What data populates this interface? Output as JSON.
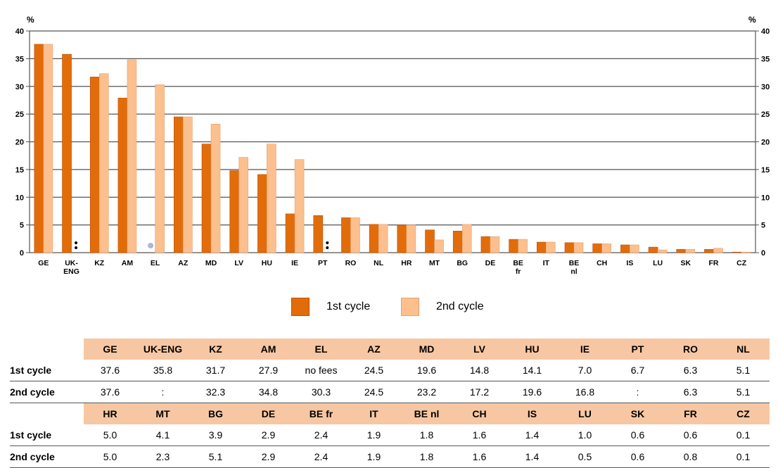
{
  "chart_data": {
    "type": "bar",
    "ylabel": "%",
    "ylim": [
      0,
      40
    ],
    "yticks": [
      0,
      5,
      10,
      15,
      20,
      25,
      30,
      35,
      40
    ],
    "categories": [
      "GE",
      "UK-ENG",
      "KZ",
      "AM",
      "EL",
      "AZ",
      "MD",
      "LV",
      "HU",
      "IE",
      "PT",
      "RO",
      "NL",
      "HR",
      "MT",
      "BG",
      "DE",
      "BE fr",
      "IT",
      "BE nl",
      "CH",
      "IS",
      "LU",
      "SK",
      "FR",
      "CZ"
    ],
    "series": [
      {
        "name": "1st cycle",
        "color": "#e36c0a",
        "values": [
          37.6,
          35.8,
          31.7,
          27.9,
          null,
          24.5,
          19.6,
          14.8,
          14.1,
          7.0,
          6.7,
          6.3,
          5.1,
          5.0,
          4.1,
          3.9,
          2.9,
          2.4,
          1.9,
          1.8,
          1.6,
          1.4,
          1.0,
          0.6,
          0.6,
          0.1
        ]
      },
      {
        "name": "2nd cycle",
        "color": "#fbc08e",
        "values": [
          37.6,
          null,
          32.3,
          34.8,
          30.3,
          24.5,
          23.2,
          17.2,
          19.6,
          16.8,
          null,
          6.3,
          5.1,
          5.0,
          2.3,
          5.1,
          2.9,
          2.4,
          1.9,
          1.8,
          1.6,
          1.4,
          0.5,
          0.6,
          0.8,
          0.1
        ]
      }
    ],
    "markers": [
      {
        "category": "UK-ENG",
        "series": "2nd cycle",
        "symbol": ":"
      },
      {
        "category": "PT",
        "series": "2nd cycle",
        "symbol": ":"
      },
      {
        "category": "EL",
        "series": "1st cycle",
        "symbol": "dot"
      }
    ],
    "grid": true,
    "legend_position": "bottom-center"
  },
  "axis": {
    "left_unit": "%",
    "right_unit": "%"
  },
  "table": {
    "row_labels": [
      "1st cycle",
      "2nd cycle"
    ],
    "blocks": [
      {
        "headers": [
          "GE",
          "UK-ENG",
          "KZ",
          "AM",
          "EL",
          "AZ",
          "MD",
          "LV",
          "HU",
          "IE",
          "PT",
          "RO",
          "NL"
        ],
        "rows": [
          [
            "37.6",
            "35.8",
            "31.7",
            "27.9",
            "no fees",
            "24.5",
            "19.6",
            "14.8",
            "14.1",
            "7.0",
            "6.7",
            "6.3",
            "5.1"
          ],
          [
            "37.6",
            ":",
            "32.3",
            "34.8",
            "30.3",
            "24.5",
            "23.2",
            "17.2",
            "19.6",
            "16.8",
            ":",
            "6.3",
            "5.1"
          ]
        ]
      },
      {
        "headers": [
          "HR",
          "MT",
          "BG",
          "DE",
          "BE fr",
          "IT",
          "BE nl",
          "CH",
          "IS",
          "LU",
          "SK",
          "FR",
          "CZ"
        ],
        "rows": [
          [
            "5.0",
            "4.1",
            "3.9",
            "2.9",
            "2.4",
            "1.9",
            "1.8",
            "1.6",
            "1.4",
            "1.0",
            "0.6",
            "0.6",
            "0.1"
          ],
          [
            "5.0",
            "2.3",
            "5.1",
            "2.9",
            "2.4",
            "1.9",
            "1.8",
            "1.6",
            "1.4",
            "0.5",
            "0.6",
            "0.8",
            "0.1"
          ]
        ]
      }
    ]
  }
}
